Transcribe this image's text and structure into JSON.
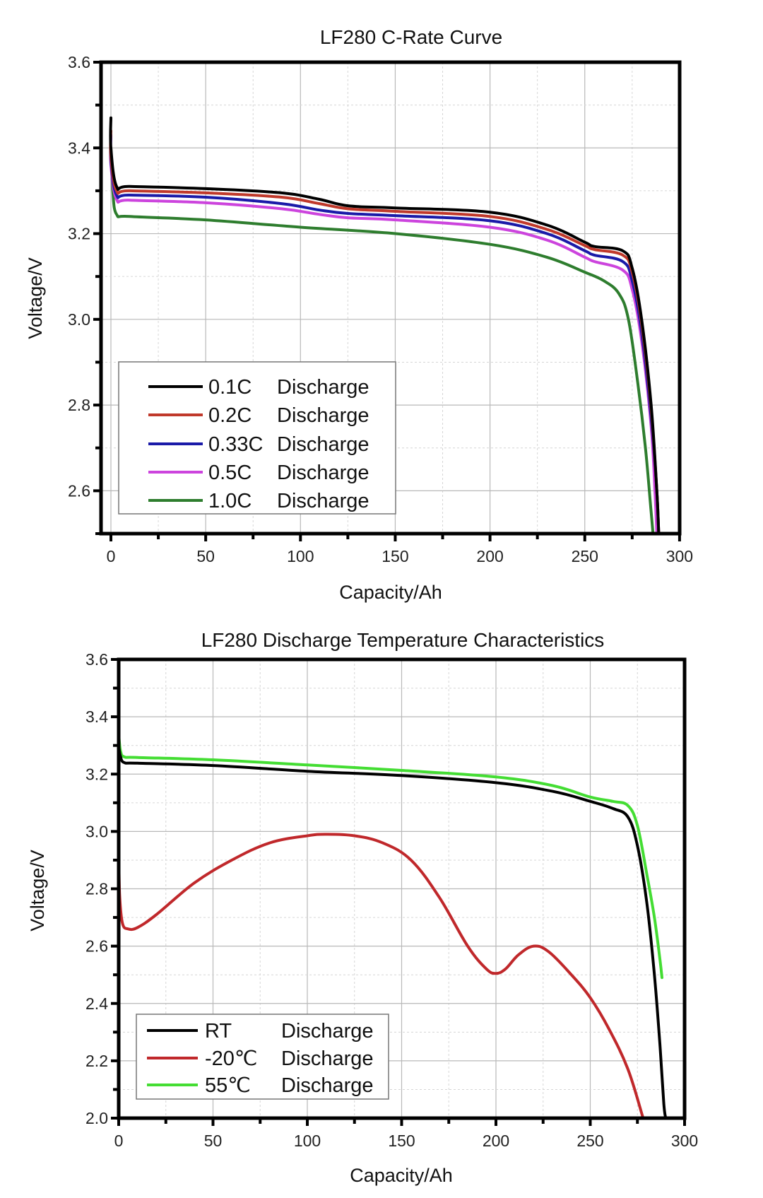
{
  "chart_data": [
    {
      "type": "line",
      "title": "LF280 C-Rate Curve",
      "xlabel": "Capacity/Ah",
      "ylabel": "Voltage/V",
      "xlim": [
        -5,
        300
      ],
      "ylim": [
        2.5,
        3.6
      ],
      "xticks": [
        "0",
        "50",
        "100",
        "150",
        "200",
        "250",
        "300"
      ],
      "yticks": [
        "2.6",
        "2.8",
        "3.0",
        "3.2",
        "3.4",
        "3.6"
      ],
      "grid": true,
      "legend_position": "bottom-left",
      "series": [
        {
          "name": "0.1C",
          "label_suffix": "Discharge",
          "color": "#000000",
          "x": [
            0,
            0,
            3,
            10,
            50,
            90,
            110,
            125,
            150,
            200,
            230,
            250,
            255,
            270,
            275,
            280,
            285,
            288,
            289
          ],
          "y": [
            3.47,
            3.4,
            3.31,
            3.31,
            3.305,
            3.295,
            3.28,
            3.265,
            3.26,
            3.25,
            3.22,
            3.18,
            3.17,
            3.16,
            3.12,
            3.0,
            2.8,
            2.6,
            2.5
          ]
        },
        {
          "name": "0.2C",
          "label_suffix": "Discharge",
          "color": "#c0392b",
          "x": [
            0,
            0,
            3,
            10,
            50,
            90,
            110,
            125,
            150,
            200,
            230,
            250,
            255,
            270,
            275,
            280,
            285,
            288,
            289
          ],
          "y": [
            3.44,
            3.38,
            3.3,
            3.3,
            3.295,
            3.285,
            3.27,
            3.258,
            3.252,
            3.24,
            3.21,
            3.172,
            3.163,
            3.15,
            3.11,
            2.99,
            2.79,
            2.6,
            2.5
          ]
        },
        {
          "name": "0.33C",
          "label_suffix": "Discharge",
          "color": "#1a1aa8",
          "x": [
            0,
            0,
            3,
            10,
            50,
            90,
            110,
            125,
            150,
            200,
            230,
            250,
            255,
            270,
            275,
            280,
            285,
            288,
            289
          ],
          "y": [
            3.43,
            3.37,
            3.29,
            3.29,
            3.285,
            3.27,
            3.255,
            3.247,
            3.242,
            3.23,
            3.2,
            3.16,
            3.15,
            3.135,
            3.09,
            2.97,
            2.77,
            2.6,
            2.5
          ]
        },
        {
          "name": "0.5C",
          "label_suffix": "Discharge",
          "color": "#cc44dd",
          "x": [
            0,
            0,
            3,
            10,
            50,
            90,
            110,
            125,
            150,
            200,
            230,
            250,
            255,
            270,
            275,
            280,
            285,
            287,
            288
          ],
          "y": [
            3.43,
            3.36,
            3.28,
            3.278,
            3.272,
            3.258,
            3.245,
            3.237,
            3.232,
            3.215,
            3.185,
            3.145,
            3.135,
            3.115,
            3.07,
            2.95,
            2.75,
            2.6,
            2.5
          ]
        },
        {
          "name": "1.0C",
          "label_suffix": "Discharge",
          "color": "#2e7d2e",
          "x": [
            0,
            1,
            3,
            10,
            50,
            100,
            150,
            200,
            230,
            250,
            260,
            268,
            273,
            278,
            282,
            285,
            286
          ],
          "y": [
            3.4,
            3.3,
            3.245,
            3.24,
            3.232,
            3.215,
            3.2,
            3.175,
            3.145,
            3.11,
            3.09,
            3.06,
            3.0,
            2.85,
            2.7,
            2.55,
            2.5
          ]
        }
      ]
    },
    {
      "type": "line",
      "title": "LF280 Discharge Temperature Characteristics",
      "xlabel": "Capacity/Ah",
      "ylabel": "Voltage/V",
      "xlim": [
        0,
        300
      ],
      "ylim": [
        2.0,
        3.6
      ],
      "xticks": [
        "0",
        "50",
        "100",
        "150",
        "200",
        "250",
        "300"
      ],
      "yticks": [
        "2.0",
        "2.2",
        "2.4",
        "2.6",
        "2.8",
        "3.0",
        "3.2",
        "3.4",
        "3.6"
      ],
      "grid": true,
      "legend_position": "bottom-left",
      "series": [
        {
          "name": "RT",
          "label_suffix": "Discharge",
          "color": "#000000",
          "x": [
            0,
            1,
            3,
            10,
            50,
            100,
            150,
            200,
            230,
            250,
            262,
            270,
            275,
            280,
            284,
            287,
            289,
            290
          ],
          "y": [
            3.3,
            3.26,
            3.24,
            3.238,
            3.23,
            3.21,
            3.195,
            3.17,
            3.14,
            3.105,
            3.08,
            3.05,
            2.95,
            2.75,
            2.5,
            2.25,
            2.05,
            2.0
          ]
        },
        {
          "name": "-20℃",
          "label_suffix": "Discharge",
          "color": "#c0282b",
          "x": [
            0,
            0.5,
            2,
            5,
            10,
            20,
            40,
            60,
            80,
            100,
            110,
            125,
            140,
            155,
            170,
            185,
            195,
            200,
            205,
            212,
            220,
            228,
            240,
            250,
            260,
            270,
            278
          ],
          "y": [
            2.95,
            2.78,
            2.68,
            2.66,
            2.665,
            2.71,
            2.82,
            2.9,
            2.96,
            2.985,
            2.99,
            2.985,
            2.96,
            2.9,
            2.77,
            2.6,
            2.52,
            2.505,
            2.52,
            2.57,
            2.6,
            2.58,
            2.5,
            2.42,
            2.31,
            2.17,
            2.0
          ]
        },
        {
          "name": "55℃",
          "label_suffix": "Discharge",
          "color": "#44dd33",
          "x": [
            0,
            1,
            3,
            10,
            50,
            100,
            150,
            200,
            230,
            250,
            262,
            270,
            275,
            280,
            284,
            287,
            288
          ],
          "y": [
            3.34,
            3.28,
            3.26,
            3.258,
            3.25,
            3.232,
            3.213,
            3.19,
            3.16,
            3.12,
            3.105,
            3.09,
            3.02,
            2.85,
            2.7,
            2.55,
            2.49
          ]
        }
      ]
    }
  ]
}
